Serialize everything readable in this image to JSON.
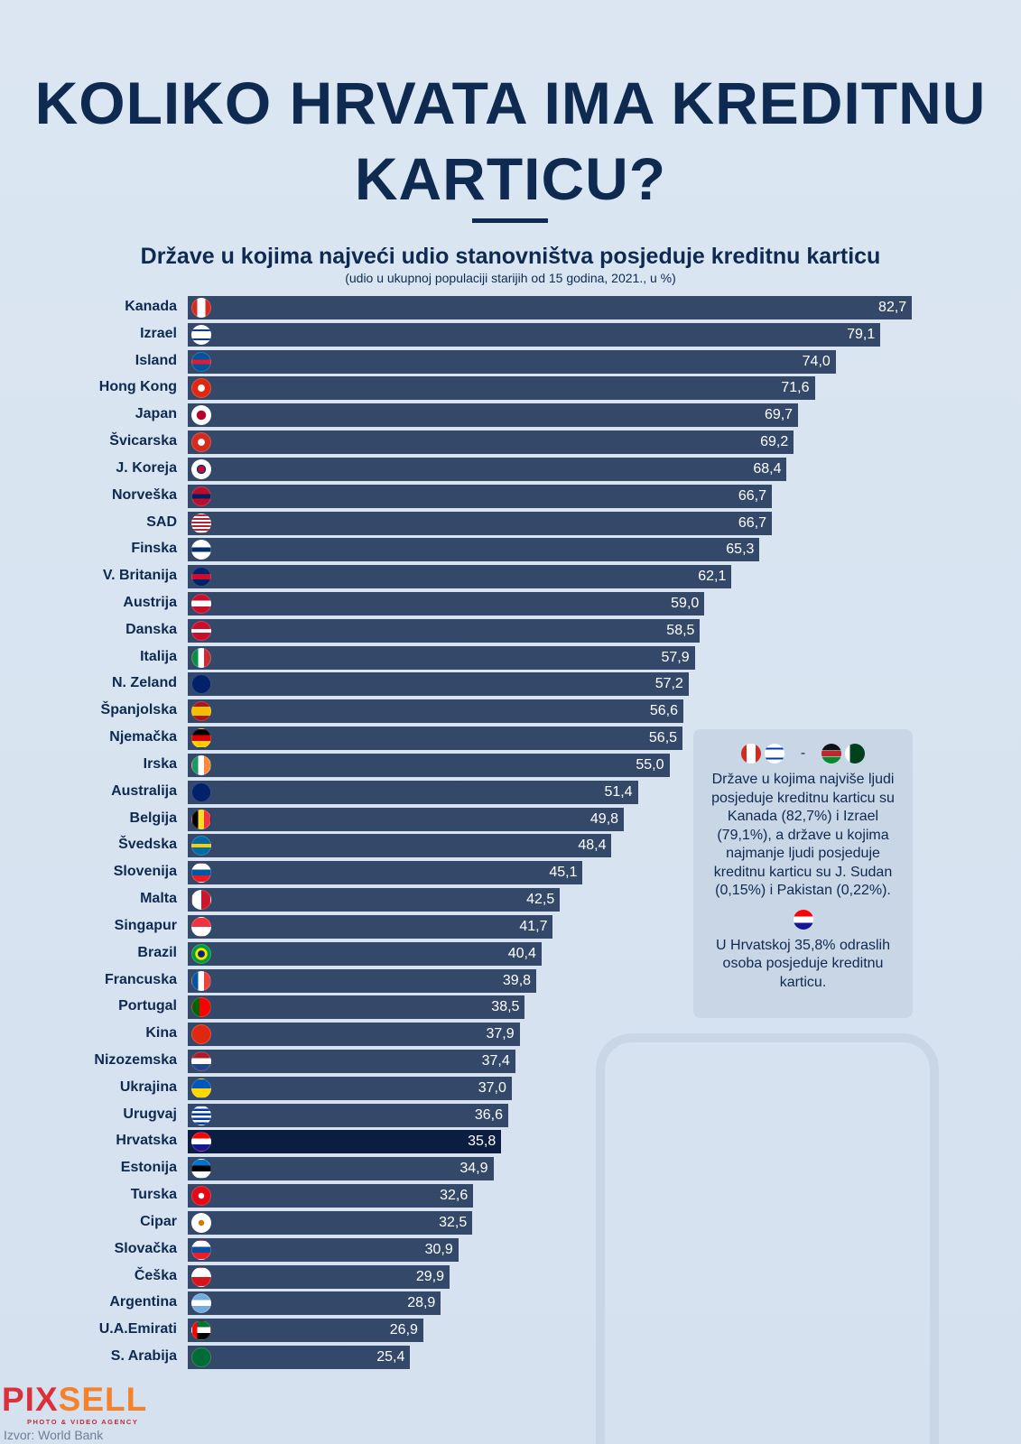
{
  "title": "KOLIKO HRVATA IMA KREDITNU KARTICU?",
  "chart_data": {
    "type": "bar",
    "orientation": "horizontal",
    "title": "Države u kojima najveći udio stanovništva posjeduje kreditnu karticu",
    "subtitle": "(udio u ukupnoj populaciji starijih od 15 godina, 2021., u %)",
    "xlim": [
      0,
      85
    ],
    "bar_color": "#34496a",
    "highlight_color": "#0b1e42",
    "highlight": "Hrvatska",
    "categories": [
      "Kanada",
      "Izrael",
      "Island",
      "Hong Kong",
      "Japan",
      "Švicarska",
      "J. Koreja",
      "Norveška",
      "SAD",
      "Finska",
      "V. Britanija",
      "Austrija",
      "Danska",
      "Italija",
      "N. Zeland",
      "Španjolska",
      "Njemačka",
      "Irska",
      "Australija",
      "Belgija",
      "Švedska",
      "Slovenija",
      "Malta",
      "Singapur",
      "Brazil",
      "Francuska",
      "Portugal",
      "Kina",
      "Nizozemska",
      "Ukrajina",
      "Urugvaj",
      "Hrvatska",
      "Estonija",
      "Turska",
      "Cipar",
      "Slovačka",
      "Češka",
      "Argentina",
      "U.A.Emirati",
      "S. Arabija"
    ],
    "values": [
      82.7,
      79.1,
      74.0,
      71.6,
      69.7,
      69.2,
      68.4,
      66.7,
      66.7,
      65.3,
      62.1,
      59.0,
      58.5,
      57.9,
      57.2,
      56.6,
      56.5,
      55.0,
      51.4,
      49.8,
      48.4,
      45.1,
      42.5,
      41.7,
      40.4,
      39.8,
      38.5,
      37.9,
      37.4,
      37.0,
      36.6,
      35.8,
      34.9,
      32.6,
      32.5,
      30.9,
      29.9,
      28.9,
      26.9,
      25.4
    ],
    "labels": [
      "82,7",
      "79,1",
      "74,0",
      "71,6",
      "69,7",
      "69,2",
      "68,4",
      "66,7",
      "66,7",
      "65,3",
      "62,1",
      "59,0",
      "58,5",
      "57,9",
      "57,2",
      "56,6",
      "56,5",
      "55,0",
      "51,4",
      "49,8",
      "48,4",
      "45,1",
      "42,5",
      "41,7",
      "40,4",
      "39,8",
      "38,5",
      "37,9",
      "37,4",
      "37,0",
      "36,6",
      "35,8",
      "34,9",
      "32,6",
      "32,5",
      "30,9",
      "29,9",
      "28,9",
      "26,9",
      "25,4"
    ]
  },
  "info": {
    "dash": "-",
    "text1": "Države u kojima najviše ljudi posjeduje kreditnu karticu su Kanada (82,7%) i Izrael (79,1%), a države u kojima najmanje ljudi posjeduje kreditnu karticu su J. Sudan (0,15%) i Pakistan (0,22%).",
    "text2": "U Hrvatskoj 35,8% odraslih osoba posjeduje kreditnu karticu."
  },
  "footer": {
    "logo": "PIXSELL",
    "logo_a": "PIX",
    "logo_b": "SELL",
    "tagline": "PHOTO & VIDEO AGENCY",
    "source": "Izvor: World Bank"
  }
}
